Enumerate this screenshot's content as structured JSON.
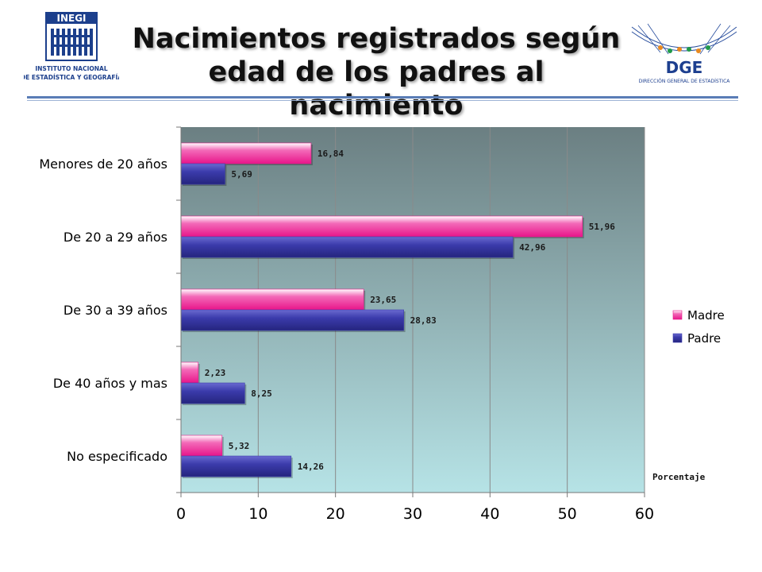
{
  "header": {
    "title_line1": "Nacimientos registrados según",
    "title_line2": "edad de los padres al nacimiento",
    "logo_left": {
      "name": "INEGI",
      "line1": "INSTITUTO NACIONAL",
      "line2": "DE ESTADÍSTICA Y GEOGRAFÍA"
    },
    "logo_right": {
      "name": "DGE",
      "subtitle": "DIRECCIÓN GENERAL DE ESTADÍSTICA"
    }
  },
  "colors": {
    "madre": "#e8168a",
    "padre": "#3b3bab",
    "plot_top": "#6b7f82",
    "plot_bottom": "#b6e3e6"
  },
  "chart_data": {
    "type": "bar",
    "orientation": "horizontal",
    "categories": [
      "Menores de 20 años",
      "De 20 a 29 años",
      "De 30 a 39 años",
      "De 40 años y mas",
      "No especificado"
    ],
    "series": [
      {
        "name": "Madre",
        "values": [
          16.84,
          51.96,
          23.65,
          2.23,
          5.32
        ]
      },
      {
        "name": "Padre",
        "values": [
          5.69,
          42.96,
          28.83,
          8.25,
          14.26
        ]
      }
    ],
    "data_labels": {
      "Madre": [
        "16,84",
        "51,96",
        "23,65",
        "2,23",
        "5,32"
      ],
      "Padre": [
        "5,69",
        "42,96",
        "28,83",
        "8,25",
        "14,26"
      ]
    },
    "xlim": [
      0,
      60
    ],
    "xticks": [
      0,
      10,
      20,
      30,
      40,
      50,
      60
    ],
    "grid": true,
    "legend_position": "right",
    "annotation": "Porcentaje"
  }
}
